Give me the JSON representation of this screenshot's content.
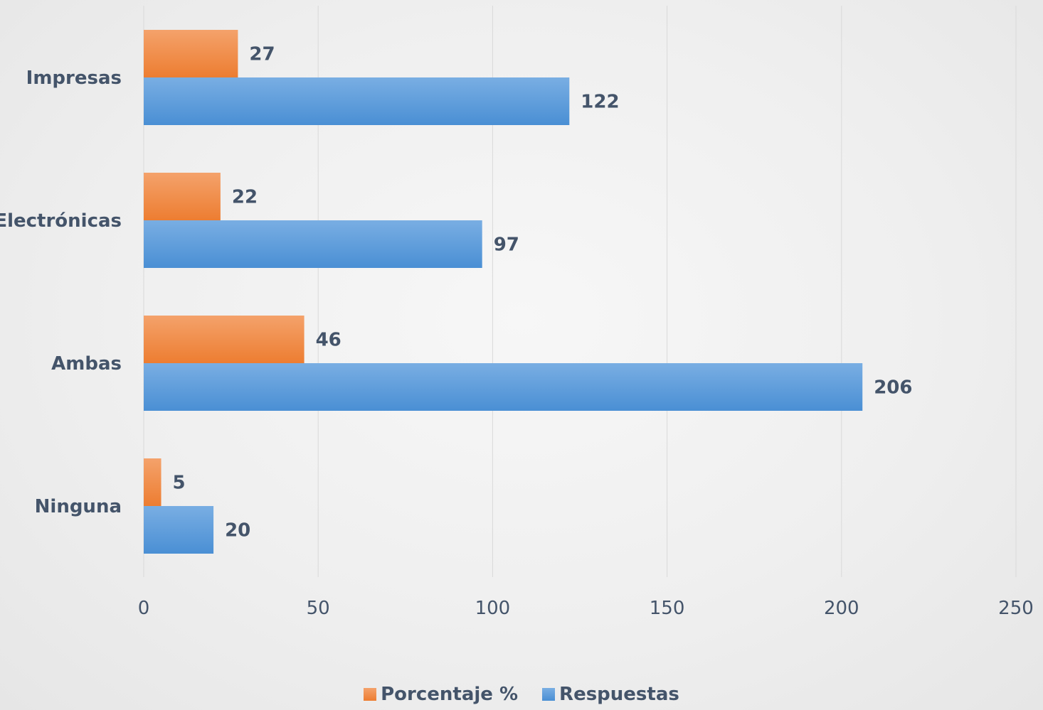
{
  "chart_data": {
    "type": "bar",
    "orientation": "horizontal",
    "categories": [
      "Impresas",
      "Electrónicas",
      "Ambas",
      "Ninguna"
    ],
    "series": [
      {
        "name": "Porcentaje %",
        "values": [
          27,
          22,
          46,
          5
        ],
        "color": "#ed7d31",
        "color_light": "#f4a26b"
      },
      {
        "name": "Respuestas",
        "values": [
          122,
          97,
          206,
          20
        ],
        "color": "#4a8fd4",
        "color_light": "#79aee3"
      }
    ],
    "xlim": [
      0,
      250
    ],
    "x_ticks": [
      0,
      50,
      100,
      150,
      200,
      250
    ],
    "x_tick_labels": [
      "0",
      "50",
      "100",
      "150",
      "200",
      "250"
    ],
    "grid": true,
    "data_labels": true,
    "legend_position": "bottom",
    "title": "",
    "xlabel": "",
    "ylabel": ""
  },
  "colors": {
    "text": "#44546a",
    "gridline": "#d9d9d9"
  }
}
